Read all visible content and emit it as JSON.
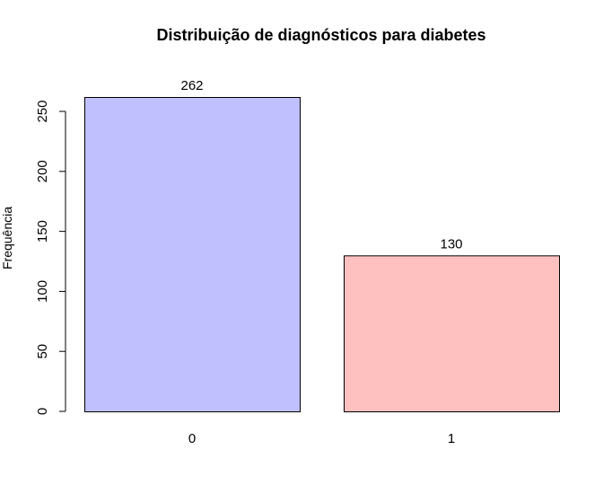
{
  "chart_data": {
    "type": "bar",
    "title": "Distribuição de diagnósticos para diabetes",
    "xlabel": "",
    "ylabel": "Frequência",
    "categories": [
      "0",
      "1"
    ],
    "values": [
      262,
      130
    ],
    "value_labels": [
      "262",
      "130"
    ],
    "colors": [
      "#c0c0ff",
      "#ffc0c0"
    ],
    "ylim": [
      0,
      262
    ],
    "y_ticks": [
      0,
      50,
      100,
      150,
      200,
      250
    ],
    "y_tick_labels": [
      "0",
      "50",
      "100",
      "150",
      "200",
      "250"
    ],
    "grid": false,
    "legend": "none"
  }
}
